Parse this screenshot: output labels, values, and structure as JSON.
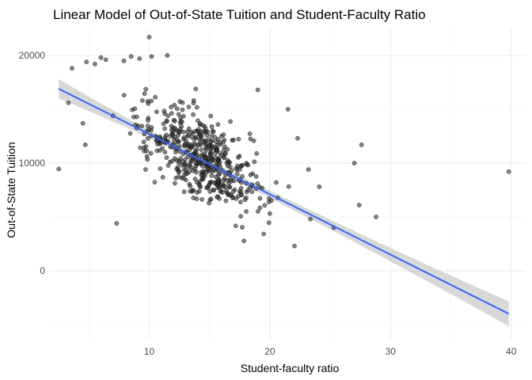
{
  "chart_data": {
    "type": "scatter",
    "title": "Linear Model of Out-of-State Tuition and Student-Faculty Ratio",
    "xlabel": "Student-faculty ratio",
    "ylabel": "Out-of-State Tuition",
    "xlim": [
      1.7,
      41.2
    ],
    "ylim": [
      -6400,
      22500
    ],
    "x_ticks": [
      10,
      20,
      30,
      40
    ],
    "y_ticks": [
      0,
      10000,
      20000
    ],
    "grid": true,
    "legend": "none",
    "point_color": "#333333",
    "line_color": "#3366ff",
    "band_color": "#bebebe",
    "fit": {
      "method": "lm",
      "x_start": 2.5,
      "x_end": 39.8,
      "y_start": 16900,
      "y_end": -4000,
      "se_start": 900,
      "se_mid": 300,
      "se_end": 1150,
      "x_mid": 14.1
    },
    "scatter_seed": 20240,
    "scatter_count": 520,
    "outliers": [
      [
        2.5,
        9450
      ],
      [
        3.3,
        15600
      ],
      [
        3.6,
        18800
      ],
      [
        4.5,
        13700
      ],
      [
        4.7,
        11700
      ],
      [
        4.8,
        19400
      ],
      [
        5.5,
        19200
      ],
      [
        6.0,
        19800
      ],
      [
        6.4,
        19600
      ],
      [
        7.0,
        14400
      ],
      [
        7.3,
        4400
      ],
      [
        7.9,
        19500
      ],
      [
        8.5,
        19900
      ],
      [
        9.2,
        19700
      ],
      [
        10.0,
        21700
      ],
      [
        10.2,
        19900
      ],
      [
        11.5,
        20000
      ],
      [
        19.0,
        16800
      ],
      [
        21.5,
        15000
      ],
      [
        22.3,
        12300
      ],
      [
        23.2,
        9400
      ],
      [
        24.1,
        7800
      ],
      [
        25.3,
        4000
      ],
      [
        27.0,
        10000
      ],
      [
        27.4,
        6100
      ],
      [
        27.6,
        11700
      ],
      [
        28.8,
        5000
      ],
      [
        39.8,
        9200
      ]
    ]
  }
}
